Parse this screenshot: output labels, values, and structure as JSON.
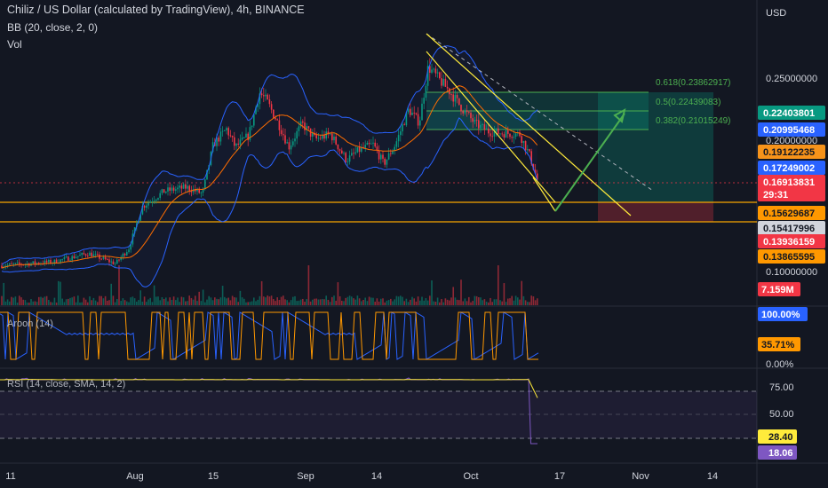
{
  "header": {
    "title": "Chiliz / US Dollar (calculated by TradingView), 4h, BINANCE",
    "bb_indicator": "BB (20, close, 2, 0)",
    "vol_indicator": "Vol"
  },
  "currency": "USD",
  "price_scale_labels": [
    "0.25000000",
    "0.20000000",
    "0.10000000"
  ],
  "fib_labels": [
    "0.618(0.23862917)",
    "0.5(0.22439083)",
    "0.382(0.21015249)"
  ],
  "price_tags": [
    {
      "value": "0.22403801",
      "color": "#089981"
    },
    {
      "value": "0.20995468",
      "color": "#2962ff"
    },
    {
      "value": "0.19122235",
      "color": "#f7931a"
    },
    {
      "value": "0.17249002",
      "color": "#2962ff"
    },
    {
      "value": "0.16913831",
      "color": "#f23645",
      "sub": "29:31"
    },
    {
      "value": "0.15629687",
      "color": "#ff9800"
    },
    {
      "value": "0.15417996",
      "color": "#d1d4dc"
    },
    {
      "value": "0.13936159",
      "color": "#f23645"
    },
    {
      "value": "0.13865595",
      "color": "#ff9800"
    }
  ],
  "volume_tag": "7.159M",
  "aroon": {
    "title": "Aroon (14)",
    "up_tag": "100.00%",
    "down_tag": "35.71%",
    "axis_label": "0.00%",
    "up_color": "#2962ff",
    "down_color": "#ff9800"
  },
  "rsi": {
    "title": "RSI (14, close, SMA, 14, 2)",
    "axis_labels": [
      "75.00",
      "50.00"
    ],
    "rsi_tag": "18.06",
    "sma_tag": "28.40",
    "rsi_color": "#7e57c2",
    "sma_color": "#ffeb3b"
  },
  "time_axis": [
    "11",
    "Aug",
    "15",
    "Sep",
    "14",
    "Oct",
    "17",
    "Nov",
    "14"
  ],
  "colors": {
    "background": "#131722",
    "up": "#089981",
    "down": "#f23645",
    "bb_band": "#2962ff",
    "bb_basis": "#ff6d00",
    "horizontal_lines": "#f7a600",
    "drawing_line": "#ffeb3b",
    "projection_arrow": "#4caf50"
  },
  "chart_data": {
    "type": "candlestick",
    "title": "Chiliz / US Dollar (calculated by TradingView), 4h, BINANCE",
    "xlabel": "",
    "ylabel": "USD",
    "x_ticks": [
      "11",
      "Aug",
      "15",
      "Sep",
      "14",
      "Oct",
      "17",
      "Nov",
      "14"
    ],
    "y_ticks": [
      0.25,
      0.2,
      0.1
    ],
    "price_path": [
      {
        "x": "11",
        "close": 0.105
      },
      {
        "x": "Aug",
        "close": 0.125
      },
      {
        "x": "15",
        "close": 0.205
      },
      {
        "x": "Sep",
        "close": 0.215
      },
      {
        "x": "14",
        "close": 0.225
      },
      {
        "x": "Oct",
        "close": 0.235
      },
      {
        "x": "end",
        "close": 0.169
      }
    ],
    "horizontal_levels": [
      0.15629687,
      0.15417996
    ],
    "fibonacci": [
      {
        "level": 0.618,
        "price": 0.23862917
      },
      {
        "level": 0.5,
        "price": 0.22439083
      },
      {
        "level": 0.382,
        "price": 0.21015249
      }
    ],
    "last_price": 0.16913831,
    "volume_last": "7.159M",
    "aroon_up_last": 100.0,
    "aroon_down_last": 35.71,
    "rsi_last": 18.06,
    "rsi_sma_last": 28.4
  }
}
